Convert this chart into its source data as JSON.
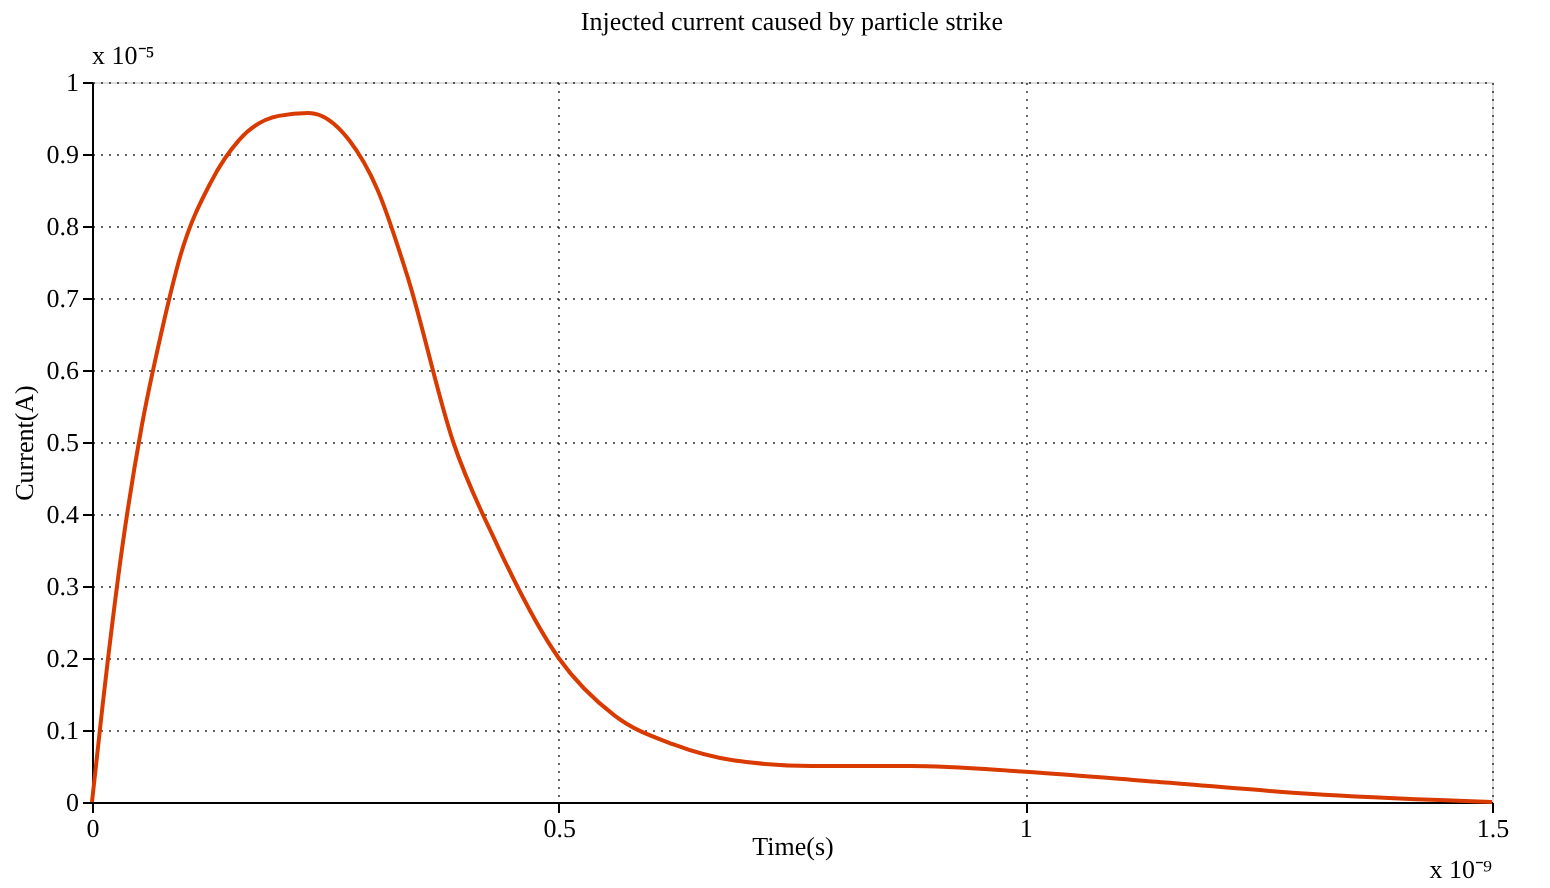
{
  "chart_data": {
    "type": "line",
    "title": "Injected current caused by particle strike",
    "xlabel": "Time(s)",
    "ylabel": "Current(A)",
    "annotations": [
      "x 10⁻⁵",
      "x 10⁻⁹"
    ],
    "x": [
      0,
      0.011,
      0.032,
      0.053,
      0.074,
      0.095,
      0.127,
      0.158,
      0.2,
      0.232,
      0.275,
      0.306,
      0.338,
      0.387,
      0.433,
      0.5,
      0.56,
      0.623,
      0.687,
      0.771,
      0.877,
      1.0,
      1.15,
      1.32,
      1.5
    ],
    "series": [
      {
        "color": "#d93a00",
        "values": [
          0,
          0.13,
          0.35,
          0.52,
          0.65,
          0.76,
          0.86,
          0.92,
          0.953,
          0.957,
          0.92,
          0.85,
          0.73,
          0.5,
          0.36,
          0.2,
          0.12,
          0.08,
          0.058,
          0.05,
          0.05,
          0.042,
          0.027,
          0.01,
          0
        ]
      }
    ],
    "xlim": [
      0,
      1.5
    ],
    "xticks": [
      0,
      0.5,
      1,
      1.5
    ],
    "ylim": [
      0,
      1
    ],
    "yticks": [
      0,
      0.1,
      0.2,
      0.3,
      0.4,
      0.5,
      0.6,
      0.7,
      0.8,
      0.9,
      1
    ],
    "grid": true,
    "line_style": "solid",
    "marker": "none"
  }
}
